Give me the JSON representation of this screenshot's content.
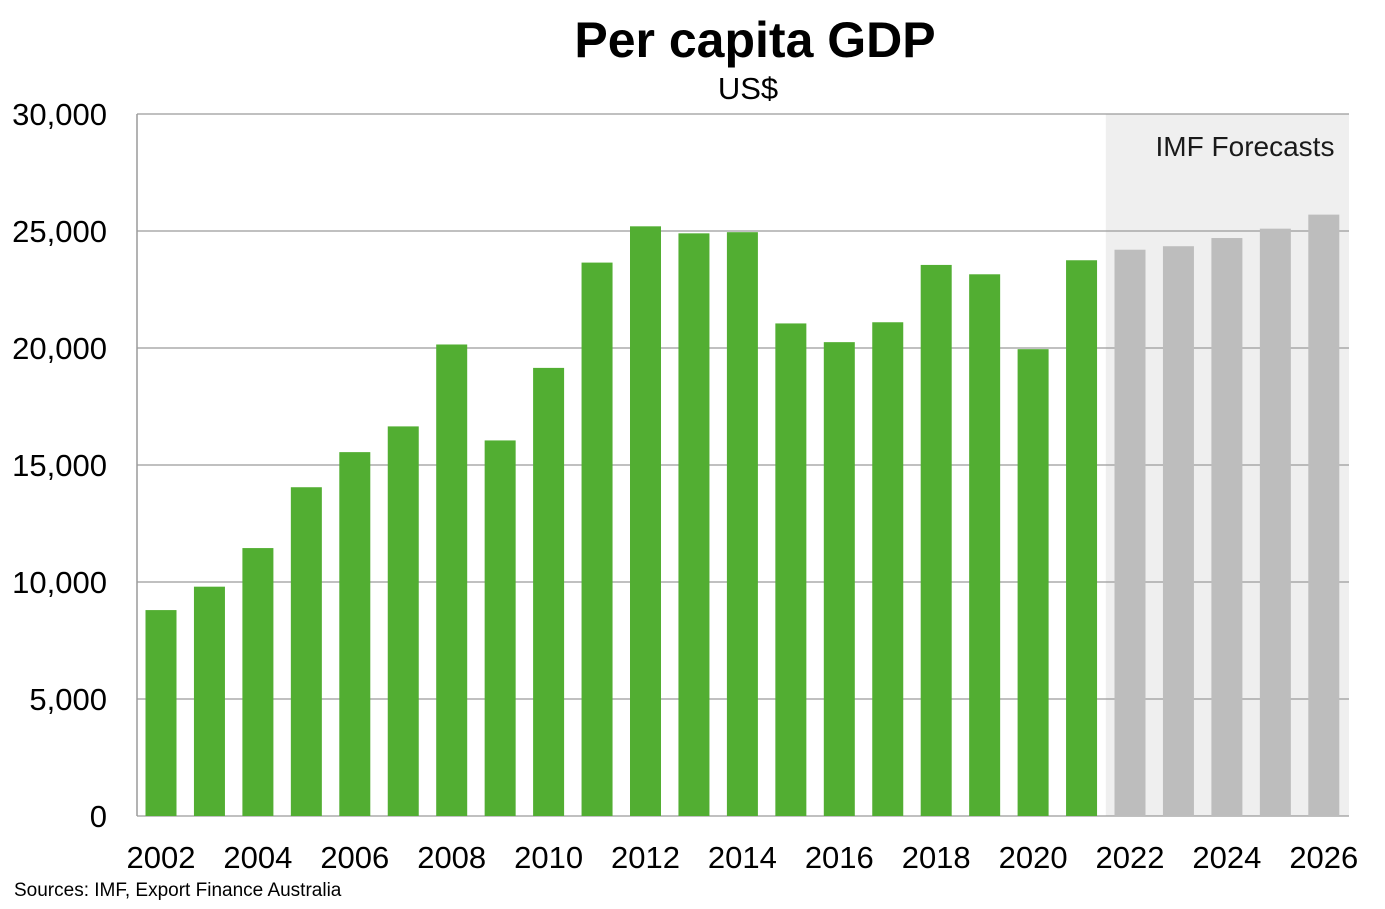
{
  "chart_data": {
    "type": "bar",
    "title": "Per capita GDP",
    "subtitle": "US$",
    "xlabel": "",
    "ylabel": "",
    "categories": [
      "2002",
      "2003",
      "2004",
      "2005",
      "2006",
      "2007",
      "2008",
      "2009",
      "2010",
      "2011",
      "2012",
      "2013",
      "2014",
      "2015",
      "2016",
      "2017",
      "2018",
      "2019",
      "2020",
      "2021",
      "2022",
      "2023",
      "2024",
      "2025",
      "2026"
    ],
    "x_tick_labels": [
      "2002",
      "2004",
      "2006",
      "2008",
      "2010",
      "2012",
      "2014",
      "2016",
      "2018",
      "2020",
      "2022",
      "2024",
      "2026"
    ],
    "series": [
      {
        "values": [
          8800,
          9800,
          11450,
          14050,
          15550,
          16650,
          20150,
          16050,
          19150,
          23650,
          25200,
          24900,
          24950,
          21050,
          20250,
          21100,
          23550,
          23150,
          19950,
          23750,
          24200,
          24350,
          24700,
          25100,
          25700
        ]
      }
    ],
    "forecast_from": "2022",
    "forecast_label": "IMF Forecasts",
    "ylim": [
      0,
      30000
    ],
    "y_ticks": [
      0,
      5000,
      10000,
      15000,
      20000,
      25000,
      30000
    ],
    "y_tick_labels": [
      "0",
      "5,000",
      "10,000",
      "15,000",
      "20,000",
      "25,000",
      "30,000"
    ],
    "grid": true,
    "colors": {
      "actual": "#52ae32",
      "forecast": "#bdbdbd",
      "forecast_shade": "#efefef",
      "gridline": "#9a9a9a"
    },
    "source": "Sources: IMF, Export Finance Australia"
  }
}
